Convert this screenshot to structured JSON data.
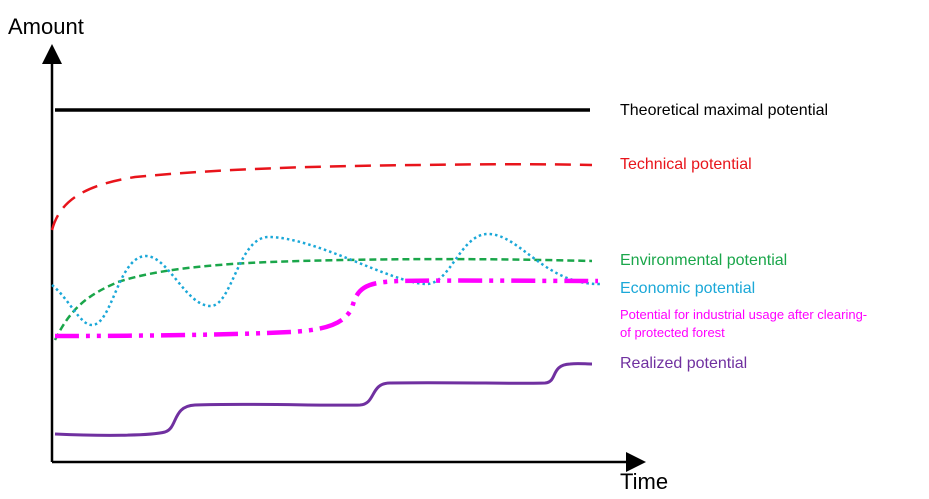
{
  "diagram": {
    "axes": {
      "y_label": "Amount",
      "x_label": "Time"
    },
    "series": [
      {
        "id": "theoretical",
        "label": "Theoretical maximal potential",
        "color": "#000000",
        "style": "solid",
        "label_lines": [
          "Theoretical maximal potential"
        ]
      },
      {
        "id": "technical",
        "label": "Technical potential",
        "color": "#e8141b",
        "style": "dashed",
        "label_lines": [
          "Technical potential"
        ]
      },
      {
        "id": "environmental",
        "label": "Environmental potential",
        "color": "#1aa64a",
        "style": "dashed",
        "label_lines": [
          "Environmental potential"
        ]
      },
      {
        "id": "economic",
        "label": "Economic potential",
        "color": "#1ba8d8",
        "style": "dotted",
        "label_lines": [
          "Economic potential"
        ]
      },
      {
        "id": "industrial",
        "label": "Potential for industrial usage after clearing-of protected forest",
        "color": "#ff00ff",
        "style": "dash-dot",
        "label_lines": [
          "Potential for industrial usage after clearing-",
          "of protected forest"
        ]
      },
      {
        "id": "realized",
        "label": "Realized potential",
        "color": "#7030a0",
        "style": "solid",
        "label_lines": [
          "Realized potential"
        ]
      }
    ]
  }
}
